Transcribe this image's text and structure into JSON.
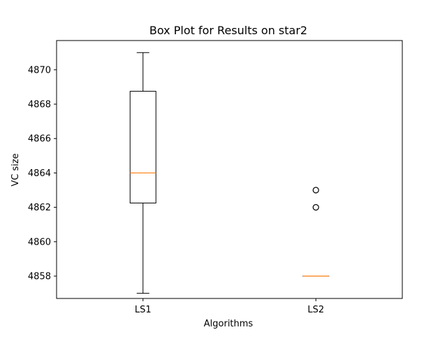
{
  "chart_data": {
    "type": "box",
    "title": "Box Plot for Results on star2",
    "xlabel": "Algorithms",
    "ylabel": "VC size",
    "categories": [
      "LS1",
      "LS2"
    ],
    "ylim": [
      4856.7,
      4871.7
    ],
    "yticks": [
      4858,
      4860,
      4862,
      4864,
      4866,
      4868,
      4870
    ],
    "grid": false,
    "boxes": [
      {
        "name": "LS1",
        "whisker_low": 4857,
        "q1": 4862.25,
        "median": 4864,
        "q3": 4868.75,
        "whisker_high": 4871,
        "outliers": []
      },
      {
        "name": "LS2",
        "whisker_low": 4858,
        "q1": 4858,
        "median": 4858,
        "q3": 4858,
        "whisker_high": 4858,
        "outliers": [
          4862,
          4863
        ]
      }
    ],
    "colors": {
      "box": "#000000",
      "median": "#ff7f0e"
    }
  }
}
